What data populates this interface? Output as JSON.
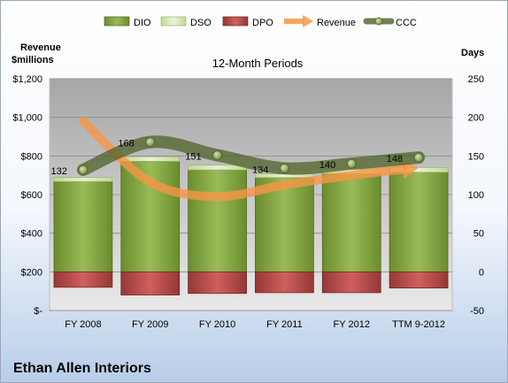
{
  "chart_data": {
    "type": "bar",
    "title": "12-Month Periods",
    "company": "Ethan Allen Interiors",
    "left_axis_title_line1": "Revenue",
    "left_axis_title_line2": "$millions",
    "right_axis_title": "Days",
    "left_ylim": [
      0,
      1200
    ],
    "left_ticks": [
      "$-",
      "$200",
      "$400",
      "$600",
      "$800",
      "$1,000",
      "$1,200"
    ],
    "right_ylim": [
      -50,
      250
    ],
    "right_ticks": [
      "-50",
      "0",
      "50",
      "100",
      "150",
      "200",
      "250"
    ],
    "categories": [
      "FY 2008",
      "FY 2009",
      "FY 2010",
      "FY 2011",
      "FY 2012",
      "TTM 9-2012"
    ],
    "legend_position": "top",
    "grid": true,
    "series": [
      {
        "name": "DIO",
        "axis": "right",
        "stack": "days",
        "color": "#77933c",
        "values": [
          117,
          143,
          132,
          122,
          127,
          129
        ]
      },
      {
        "name": "DSO",
        "axis": "right",
        "stack": "days",
        "color": "#d7e4bd",
        "values": [
          5,
          6,
          6,
          5,
          6,
          6
        ]
      },
      {
        "name": "DPO",
        "axis": "right",
        "stack": "days",
        "color": "#c0504d",
        "values": [
          -20,
          -30,
          -28,
          -27,
          -27,
          -21
        ]
      },
      {
        "name": "Revenue",
        "axis": "left",
        "type": "line",
        "color": "#f79646",
        "values": [
          980,
          665,
          590,
          650,
          700,
          730
        ]
      },
      {
        "name": "CCC",
        "axis": "right",
        "type": "line",
        "color": "#4f6228",
        "values": [
          132,
          168,
          151,
          134,
          140,
          148
        ],
        "labels": [
          "132",
          "168",
          "151",
          "134",
          "140",
          "148"
        ]
      }
    ]
  }
}
